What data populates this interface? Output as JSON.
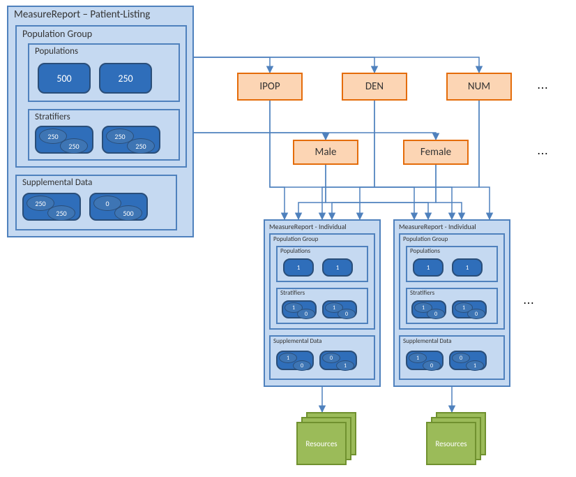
{
  "colors": {
    "light_blue_fill": "#c5d9f1",
    "blue_border": "#4f81bd",
    "dark_blue_fill": "#2f6eba",
    "dark_blue_border": "#2a4e79",
    "mid_blue_fill": "#3e75b4",
    "mid_blue_border": "#2a4e79",
    "peach_fill": "#fcd5b4",
    "peach_border": "#e46c0a",
    "green_fill": "#9bbb59",
    "green_border": "#70912f",
    "arrow": "#4f81bd",
    "text_dark": "#1f497d",
    "text_black": "#333333"
  },
  "mainReport": {
    "title": "MeasureReport – Patient-Listing",
    "popGroup": "Population Group",
    "populations": {
      "label": "Populations",
      "values": [
        "500",
        "250"
      ]
    },
    "stratifiers": {
      "label": "Stratifiers",
      "pairs": [
        [
          "250",
          "250"
        ],
        [
          "250",
          "250"
        ]
      ]
    },
    "supplemental": {
      "label": "Supplemental Data",
      "pairs": [
        [
          "250",
          "250"
        ],
        [
          "0",
          "500"
        ]
      ]
    }
  },
  "popBoxes": [
    "IPOP",
    "DEN",
    "NUM"
  ],
  "strataBoxes": [
    "Male",
    "Female"
  ],
  "individual": {
    "title": "MeasureReport - Individual",
    "popGroup": "Population Group",
    "populations": {
      "label": "Populations",
      "values": [
        "1",
        "1"
      ]
    },
    "stratifiers": {
      "label": "Stratifiers",
      "pairs": [
        [
          "1",
          "0"
        ],
        [
          "1",
          "0"
        ]
      ]
    },
    "supplemental": {
      "label": "Supplemental Data",
      "pairs": [
        [
          "1",
          "0"
        ],
        [
          "0",
          "1"
        ]
      ]
    }
  },
  "resources": "Resources",
  "ellipsis": "⋯",
  "fontsize": {
    "main_title": 15,
    "section": 14,
    "sub": 13,
    "val": 14,
    "ind_title": 10,
    "ind_section": 9,
    "ind_val": 9,
    "pop": 15,
    "strata": 15,
    "res": 11
  }
}
